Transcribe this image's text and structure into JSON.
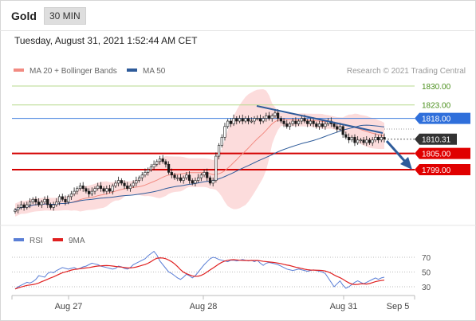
{
  "header": {
    "symbol": "Gold",
    "timeframe": "30 MIN"
  },
  "datetime": "Tuesday, August 31, 2021 1:52:44 AM CET",
  "legend_main": [
    {
      "label": "MA 20 + Bollinger Bands",
      "color": "#f28b82"
    },
    {
      "label": "MA 50",
      "color": "#2e5b9a"
    }
  ],
  "copyright": "Research © 2021 Trading Central",
  "legend_rsi": [
    {
      "label": "RSI",
      "color": "#5b7fd6"
    },
    {
      "label": "9MA",
      "color": "#e02020"
    }
  ],
  "chart_data": {
    "type": "candlestick",
    "ylim": [
      1778,
      1837
    ],
    "x_range": [
      "2021-08-26 16:00",
      "2021-09-05 00:00"
    ],
    "x_ticks": [
      {
        "label": "Aug 27",
        "time": "2021-08-27"
      },
      {
        "label": "Aug 28",
        "time": "2021-08-28"
      },
      {
        "label": "Aug 31",
        "time": "2021-08-31"
      },
      {
        "label": "Sep 5",
        "time": "2021-09-05"
      }
    ],
    "levels": [
      {
        "value": 1830.0,
        "label": "1830.00",
        "color": "#6aa84f",
        "style": "green"
      },
      {
        "value": 1823.0,
        "label": "1823.00",
        "color": "#6aa84f",
        "style": "green"
      },
      {
        "value": 1818.0,
        "label": "1818.00",
        "color": "#3b7ddd",
        "style": "blue"
      },
      {
        "value": 1810.31,
        "label": "1810.31",
        "color": "#333333",
        "style": "current"
      },
      {
        "value": 1805.0,
        "label": "1805.00",
        "color": "#d40000",
        "style": "red"
      },
      {
        "value": 1799.0,
        "label": "1799.00",
        "color": "#d40000",
        "style": "red"
      }
    ],
    "closes": [
      1784,
      1785,
      1786,
      1785,
      1786,
      1787,
      1788,
      1787,
      1786,
      1787,
      1788,
      1786,
      1785,
      1786,
      1787,
      1789,
      1788,
      1787,
      1789,
      1790,
      1791,
      1792,
      1793,
      1792,
      1791,
      1790,
      1791,
      1792,
      1793,
      1792,
      1791,
      1792,
      1791,
      1793,
      1794,
      1795,
      1794,
      1793,
      1792,
      1793,
      1794,
      1795,
      1796,
      1797,
      1798,
      1799,
      1800,
      1801,
      1802,
      1803,
      1802,
      1801,
      1798,
      1797,
      1796,
      1796,
      1795,
      1796,
      1797,
      1795,
      1794,
      1795,
      1796,
      1797,
      1798,
      1796,
      1794,
      1795,
      1804,
      1808,
      1811,
      1815,
      1817,
      1816,
      1818,
      1817,
      1818,
      1817,
      1818,
      1817,
      1817,
      1818,
      1818,
      1817,
      1818,
      1819,
      1818,
      1819,
      1820,
      1818,
      1817,
      1816,
      1815,
      1816,
      1817,
      1816,
      1817,
      1818,
      1817,
      1816,
      1817,
      1816,
      1815,
      1816,
      1815,
      1816,
      1817,
      1816,
      1815,
      1814,
      1815,
      1812,
      1811,
      1810,
      1811,
      1809,
      1810,
      1810,
      1809,
      1810,
      1809,
      1810,
      1811,
      1810,
      1811,
      1810.31
    ],
    "rsi": [
      27,
      30,
      32,
      34,
      36,
      35,
      37,
      40,
      45,
      44,
      43,
      48,
      50,
      49,
      52,
      54,
      56,
      55,
      54,
      55,
      56,
      54,
      55,
      57,
      58,
      60,
      62,
      61,
      60,
      58,
      57,
      56,
      55,
      54,
      55,
      58,
      57,
      55,
      54,
      56,
      60,
      62,
      64,
      66,
      68,
      72,
      75,
      78,
      73,
      65,
      60,
      55,
      50,
      48,
      45,
      42,
      40,
      43,
      47,
      45,
      42,
      45,
      50,
      55,
      60,
      64,
      68,
      70,
      69,
      67,
      66,
      65,
      64,
      66,
      66,
      65,
      66,
      67,
      66,
      65,
      66,
      64,
      66,
      62,
      59,
      62,
      63,
      62,
      61,
      60,
      58,
      56,
      54,
      53,
      52,
      53,
      54,
      53,
      52,
      51,
      52,
      53,
      52,
      51,
      50,
      48,
      42,
      36,
      30,
      34,
      38,
      32,
      28,
      30,
      33,
      36,
      38,
      36,
      34,
      36,
      38,
      40,
      42,
      40,
      42,
      43
    ],
    "rsi_levels": [
      70,
      50,
      30
    ],
    "rsi_ylim": [
      20,
      80
    ]
  }
}
